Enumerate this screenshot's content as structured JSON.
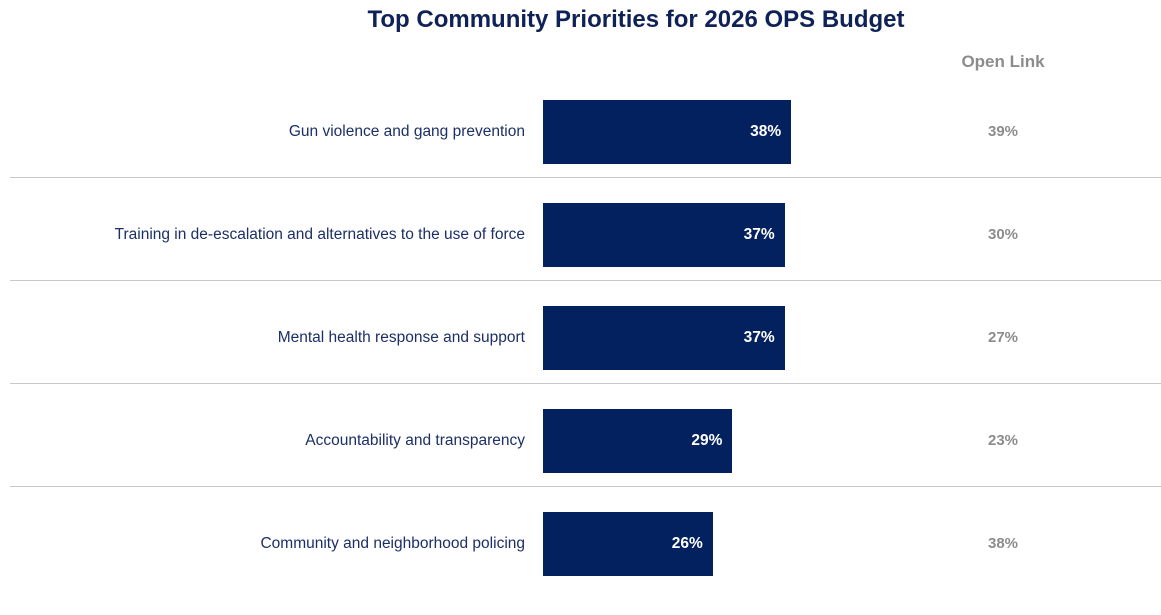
{
  "chart_data": {
    "type": "bar",
    "orientation": "horizontal",
    "title": "Top Community Priorities for 2026 OPS Budget",
    "categories": [
      "Gun violence and gang prevention",
      "Training in de-escalation and alternatives to the use of force",
      "Mental health response and support",
      "Accountability and transparency",
      "Community and neighborhood policing"
    ],
    "values": [
      38,
      37,
      37,
      29,
      26
    ],
    "value_labels": [
      "38%",
      "37%",
      "37%",
      "29%",
      "26%"
    ],
    "bar_color": "#03215f",
    "comparison": {
      "header": "Open Link",
      "values": [
        39,
        30,
        27,
        23,
        38
      ],
      "value_labels": [
        "39%",
        "30%",
        "27%",
        "23%",
        "38%"
      ]
    },
    "grid": false
  }
}
